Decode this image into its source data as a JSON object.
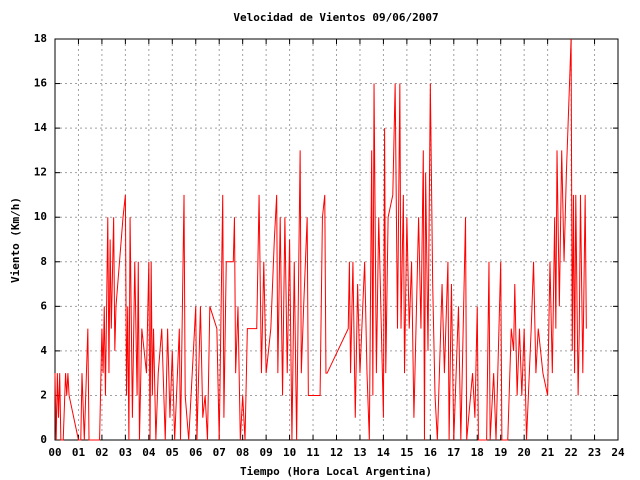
{
  "chart_data": {
    "type": "line",
    "title": "Velocidad de Vientos 09/06/2007",
    "xlabel": "Tiempo (Hora Local Argentina)",
    "ylabel": "Viento (Km/h)",
    "x": [
      0.0,
      0.05,
      0.1,
      0.15,
      0.2,
      0.25,
      0.35,
      0.45,
      0.5,
      0.55,
      0.6,
      1.0,
      1.1,
      1.15,
      1.25,
      1.4,
      1.45,
      1.9,
      2.0,
      2.05,
      2.1,
      2.15,
      2.25,
      2.3,
      2.35,
      2.4,
      2.5,
      2.55,
      2.6,
      2.9,
      3.0,
      3.05,
      3.1,
      3.15,
      3.2,
      3.3,
      3.4,
      3.5,
      3.55,
      3.6,
      3.7,
      3.9,
      4.0,
      4.05,
      4.1,
      4.15,
      4.2,
      4.3,
      4.4,
      4.55,
      4.7,
      4.8,
      4.9,
      5.0,
      5.1,
      5.3,
      5.35,
      5.5,
      5.55,
      5.7,
      5.9,
      6.0,
      6.05,
      6.2,
      6.3,
      6.4,
      6.5,
      6.6,
      6.9,
      7.0,
      7.15,
      7.2,
      7.3,
      7.6,
      7.65,
      7.7,
      7.8,
      7.9,
      8.0,
      8.1,
      8.2,
      8.6,
      8.7,
      8.8,
      8.9,
      9.0,
      9.2,
      9.35,
      9.45,
      9.5,
      9.6,
      9.7,
      9.8,
      9.9,
      10.0,
      10.1,
      10.2,
      10.3,
      10.45,
      10.5,
      10.6,
      10.75,
      10.8,
      10.9,
      11.3,
      11.4,
      11.5,
      11.55,
      11.6,
      12.5,
      12.55,
      12.6,
      12.7,
      12.8,
      12.9,
      13.0,
      13.2,
      13.3,
      13.4,
      13.5,
      13.55,
      13.6,
      13.7,
      13.8,
      14.0,
      14.05,
      14.1,
      14.2,
      14.4,
      14.5,
      14.6,
      14.7,
      14.75,
      14.85,
      14.9,
      15.0,
      15.1,
      15.2,
      15.3,
      15.5,
      15.6,
      15.7,
      15.75,
      15.8,
      15.9,
      16.0,
      16.1,
      16.2,
      16.3,
      16.5,
      16.6,
      16.75,
      16.8,
      16.9,
      17.0,
      17.2,
      17.3,
      17.5,
      17.55,
      17.8,
      17.9,
      18.0,
      18.05,
      18.4,
      18.5,
      18.55,
      18.7,
      18.8,
      19.0,
      19.05,
      19.3,
      19.45,
      19.55,
      19.6,
      19.7,
      19.8,
      19.9,
      20.0,
      20.1,
      20.3,
      20.4,
      20.5,
      20.6,
      20.8,
      21.0,
      21.1,
      21.2,
      21.3,
      21.35,
      21.4,
      21.5,
      21.6,
      21.7,
      21.8,
      22.0,
      22.05,
      22.1,
      22.15,
      22.2,
      22.3,
      22.35,
      22.4,
      22.5,
      22.6,
      22.65
    ],
    "series": [
      {
        "color": "#ff0000",
        "values": [
          3,
          0,
          3,
          1,
          3,
          0,
          0,
          3,
          2,
          3,
          2,
          0,
          0,
          3,
          0,
          5,
          0,
          0,
          5,
          3,
          6,
          2,
          10,
          3,
          9,
          5,
          10,
          4,
          6,
          10,
          11,
          2,
          6,
          0,
          10,
          1,
          8,
          2,
          8,
          0,
          5,
          3,
          8,
          0,
          8,
          2,
          5,
          0,
          3,
          5,
          0,
          5,
          1,
          4,
          0,
          5,
          0,
          11,
          2,
          0,
          4,
          6,
          0,
          6,
          1,
          2,
          0,
          6,
          5,
          0,
          11,
          1,
          8,
          8,
          10,
          3,
          6,
          0,
          2,
          0,
          5,
          5,
          11,
          3,
          8,
          3,
          5,
          9,
          11,
          3,
          10,
          2,
          10,
          3,
          9,
          0,
          8,
          0,
          13,
          3,
          6,
          10,
          2,
          2,
          2,
          10,
          11,
          3,
          3,
          5,
          8,
          3,
          8,
          1,
          7,
          3,
          8,
          3,
          0,
          13,
          2,
          16,
          3,
          10,
          1,
          14,
          3,
          10,
          11,
          16,
          5,
          16,
          5,
          11,
          3,
          10,
          5,
          8,
          1,
          10,
          5,
          13,
          0,
          12,
          4,
          16,
          7,
          2,
          0,
          7,
          3,
          8,
          0,
          7,
          0,
          6,
          0,
          10,
          0,
          3,
          1,
          6,
          0,
          0,
          8,
          0,
          3,
          0,
          8,
          0,
          0,
          5,
          4,
          7,
          2,
          5,
          2,
          5,
          0,
          5,
          8,
          3,
          5,
          3,
          2,
          8,
          3,
          10,
          5,
          13,
          6,
          13,
          8,
          12,
          18,
          4,
          11,
          3,
          11,
          2,
          5,
          11,
          3,
          11,
          5
        ]
      }
    ],
    "xlim": [
      0,
      24
    ],
    "xticks": [
      {
        "value": 0,
        "label": "00"
      },
      {
        "value": 1,
        "label": "01"
      },
      {
        "value": 2,
        "label": "02"
      },
      {
        "value": 3,
        "label": "03"
      },
      {
        "value": 4,
        "label": "04"
      },
      {
        "value": 5,
        "label": "05"
      },
      {
        "value": 6,
        "label": "06"
      },
      {
        "value": 7,
        "label": "07"
      },
      {
        "value": 8,
        "label": "08"
      },
      {
        "value": 9,
        "label": "09"
      },
      10,
      11,
      12,
      13,
      14,
      15,
      16,
      17,
      18,
      19,
      20,
      21,
      22,
      23,
      24
    ],
    "ylim": [
      0,
      18
    ],
    "yticks": [
      0,
      2,
      4,
      6,
      8,
      10,
      12,
      14,
      16,
      18
    ],
    "grid": true
  }
}
